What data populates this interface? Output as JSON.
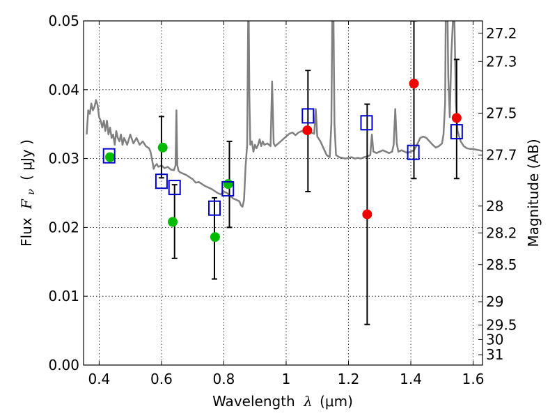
{
  "chart_data": {
    "type": "scatter",
    "xlabel_text": "Wavelength",
    "xlabel_symbol": "λ",
    "xlabel_unit": "(μm)",
    "ylabel_text": "Flux",
    "ylabel_symbol": "F",
    "ylabel_subscript": "ν",
    "ylabel_unit": "( μJy )",
    "y2label": "Magnitude (AB)",
    "xlim": [
      0.35,
      1.63
    ],
    "ylim": [
      0.0,
      0.05
    ],
    "x_ticks": [
      0.4,
      0.6,
      0.8,
      1.0,
      1.2,
      1.4,
      1.6
    ],
    "x_tick_labels": [
      "0.4",
      "0.6",
      "0.8",
      "1",
      "1.2",
      "1.4",
      "1.6"
    ],
    "y_ticks": [
      0.0,
      0.01,
      0.02,
      0.03,
      0.04,
      0.05
    ],
    "y_tick_labels": [
      "0.00",
      "0.01",
      "0.02",
      "0.03",
      "0.04",
      "0.05"
    ],
    "mag_ticks": [
      {
        "label": "27.2",
        "flux": 0.0482
      },
      {
        "label": "27.3",
        "flux": 0.0441
      },
      {
        "label": "27.5",
        "flux": 0.0366
      },
      {
        "label": "27.7",
        "flux": 0.0305
      },
      {
        "label": "28",
        "flux": 0.0231
      },
      {
        "label": "28.2",
        "flux": 0.0192
      },
      {
        "label": "28.5",
        "flux": 0.0146
      },
      {
        "label": "29",
        "flux": 0.0092
      },
      {
        "label": "29.5",
        "flux": 0.0058
      },
      {
        "label": "30",
        "flux": 0.0037
      },
      {
        "label": "31",
        "flux": 0.0015
      }
    ],
    "grid": true,
    "model_spectrum": {
      "color": "#808080",
      "points": [
        [
          0.36,
          0.0335
        ],
        [
          0.365,
          0.037
        ],
        [
          0.37,
          0.0365
        ],
        [
          0.375,
          0.038
        ],
        [
          0.38,
          0.037
        ],
        [
          0.385,
          0.0375
        ],
        [
          0.39,
          0.0385
        ],
        [
          0.395,
          0.0378
        ],
        [
          0.4,
          0.036
        ],
        [
          0.405,
          0.0355
        ],
        [
          0.41,
          0.0345
        ],
        [
          0.415,
          0.0355
        ],
        [
          0.42,
          0.034
        ],
        [
          0.425,
          0.0355
        ],
        [
          0.43,
          0.0335
        ],
        [
          0.435,
          0.0345
        ],
        [
          0.44,
          0.033
        ],
        [
          0.445,
          0.0335
        ],
        [
          0.45,
          0.032
        ],
        [
          0.455,
          0.034
        ],
        [
          0.46,
          0.033
        ],
        [
          0.465,
          0.0325
        ],
        [
          0.47,
          0.0335
        ],
        [
          0.475,
          0.032
        ],
        [
          0.48,
          0.033
        ],
        [
          0.49,
          0.032
        ],
        [
          0.5,
          0.0335
        ],
        [
          0.51,
          0.0322
        ],
        [
          0.52,
          0.033
        ],
        [
          0.53,
          0.032
        ],
        [
          0.54,
          0.0325
        ],
        [
          0.55,
          0.0318
        ],
        [
          0.56,
          0.0315
        ],
        [
          0.565,
          0.031
        ],
        [
          0.57,
          0.0298
        ],
        [
          0.575,
          0.0285
        ],
        [
          0.58,
          0.029
        ],
        [
          0.585,
          0.0292
        ],
        [
          0.59,
          0.0288
        ],
        [
          0.6,
          0.029
        ],
        [
          0.61,
          0.0286
        ],
        [
          0.62,
          0.0288
        ],
        [
          0.63,
          0.0284
        ],
        [
          0.64,
          0.0283
        ],
        [
          0.645,
          0.029
        ],
        [
          0.648,
          0.037
        ],
        [
          0.651,
          0.029
        ],
        [
          0.655,
          0.0282
        ],
        [
          0.66,
          0.028
        ],
        [
          0.67,
          0.0278
        ],
        [
          0.68,
          0.0276
        ],
        [
          0.69,
          0.0273
        ],
        [
          0.7,
          0.027
        ],
        [
          0.71,
          0.0265
        ],
        [
          0.72,
          0.0266
        ],
        [
          0.73,
          0.0263
        ],
        [
          0.74,
          0.026
        ],
        [
          0.75,
          0.0258
        ],
        [
          0.76,
          0.0256
        ],
        [
          0.77,
          0.0253
        ],
        [
          0.78,
          0.025
        ],
        [
          0.79,
          0.0248
        ],
        [
          0.8,
          0.0252
        ],
        [
          0.81,
          0.025
        ],
        [
          0.82,
          0.0246
        ],
        [
          0.83,
          0.0242
        ],
        [
          0.84,
          0.024
        ],
        [
          0.85,
          0.0238
        ],
        [
          0.855,
          0.0232
        ],
        [
          0.86,
          0.023
        ],
        [
          0.865,
          0.024
        ],
        [
          0.87,
          0.029
        ],
        [
          0.875,
          0.032
        ],
        [
          0.878,
          0.05
        ],
        [
          0.88,
          0.05
        ],
        [
          0.882,
          0.039
        ],
        [
          0.885,
          0.032
        ],
        [
          0.89,
          0.0325
        ],
        [
          0.895,
          0.031
        ],
        [
          0.9,
          0.032
        ],
        [
          0.905,
          0.0315
        ],
        [
          0.91,
          0.032
        ],
        [
          0.915,
          0.0328
        ],
        [
          0.92,
          0.0318
        ],
        [
          0.925,
          0.0325
        ],
        [
          0.93,
          0.032
        ],
        [
          0.94,
          0.0322
        ],
        [
          0.95,
          0.0318
        ],
        [
          0.955,
          0.0412
        ],
        [
          0.96,
          0.0322
        ],
        [
          0.965,
          0.0318
        ],
        [
          0.97,
          0.032
        ],
        [
          0.98,
          0.0324
        ],
        [
          0.99,
          0.0328
        ],
        [
          1.0,
          0.0332
        ],
        [
          1.01,
          0.0336
        ],
        [
          1.02,
          0.0338
        ],
        [
          1.03,
          0.0334
        ],
        [
          1.04,
          0.0338
        ],
        [
          1.05,
          0.034
        ],
        [
          1.06,
          0.0337
        ],
        [
          1.07,
          0.0335
        ],
        [
          1.08,
          0.0338
        ],
        [
          1.09,
          0.0336
        ],
        [
          1.095,
          0.0372
        ],
        [
          1.1,
          0.0332
        ],
        [
          1.11,
          0.0325
        ],
        [
          1.12,
          0.0315
        ],
        [
          1.13,
          0.0305
        ],
        [
          1.14,
          0.0302
        ],
        [
          1.145,
          0.035
        ],
        [
          1.148,
          0.05
        ],
        [
          1.152,
          0.05
        ],
        [
          1.155,
          0.035
        ],
        [
          1.16,
          0.0305
        ],
        [
          1.17,
          0.0302
        ],
        [
          1.18,
          0.0301
        ],
        [
          1.19,
          0.03
        ],
        [
          1.2,
          0.0301
        ],
        [
          1.21,
          0.0302
        ],
        [
          1.22,
          0.03
        ],
        [
          1.23,
          0.0301
        ],
        [
          1.24,
          0.03
        ],
        [
          1.25,
          0.0302
        ],
        [
          1.26,
          0.0303
        ],
        [
          1.27,
          0.0305
        ],
        [
          1.275,
          0.0335
        ],
        [
          1.28,
          0.031
        ],
        [
          1.29,
          0.0308
        ],
        [
          1.3,
          0.031
        ],
        [
          1.31,
          0.0312
        ],
        [
          1.32,
          0.031
        ],
        [
          1.33,
          0.0308
        ],
        [
          1.34,
          0.031
        ],
        [
          1.345,
          0.032
        ],
        [
          1.35,
          0.0372
        ],
        [
          1.355,
          0.0322
        ],
        [
          1.36,
          0.031
        ],
        [
          1.37,
          0.0312
        ],
        [
          1.38,
          0.031
        ],
        [
          1.39,
          0.0308
        ],
        [
          1.4,
          0.031
        ],
        [
          1.41,
          0.0312
        ],
        [
          1.42,
          0.032
        ],
        [
          1.43,
          0.033
        ],
        [
          1.44,
          0.0332
        ],
        [
          1.45,
          0.033
        ],
        [
          1.46,
          0.0325
        ],
        [
          1.47,
          0.032
        ],
        [
          1.48,
          0.0316
        ],
        [
          1.49,
          0.0318
        ],
        [
          1.5,
          0.0322
        ],
        [
          1.505,
          0.0335
        ],
        [
          1.51,
          0.038
        ],
        [
          1.512,
          0.05
        ],
        [
          1.518,
          0.05
        ],
        [
          1.52,
          0.042
        ],
        [
          1.525,
          0.036
        ],
        [
          1.53,
          0.045
        ],
        [
          1.535,
          0.05
        ],
        [
          1.54,
          0.05
        ],
        [
          1.545,
          0.038
        ],
        [
          1.55,
          0.034
        ],
        [
          1.56,
          0.0325
        ],
        [
          1.57,
          0.0318
        ],
        [
          1.58,
          0.0315
        ],
        [
          1.59,
          0.0314
        ],
        [
          1.6,
          0.0314
        ],
        [
          1.61,
          0.0313
        ],
        [
          1.62,
          0.0312
        ],
        [
          1.63,
          0.0311
        ]
      ]
    },
    "green_points": {
      "color": "#00bb00",
      "points": [
        [
          0.435,
          0.0302
        ],
        [
          0.604,
          0.0316
        ],
        [
          0.636,
          0.0208
        ],
        [
          0.772,
          0.0186
        ],
        [
          0.814,
          0.0263
        ]
      ]
    },
    "red_points": {
      "color": "#ee0000",
      "points": [
        [
          1.068,
          0.0341
        ],
        [
          1.26,
          0.0219
        ],
        [
          1.41,
          0.0409
        ],
        [
          1.547,
          0.0359
        ]
      ]
    },
    "model_squares": {
      "color": "#0000cc",
      "points": [
        [
          0.432,
          0.0304
        ],
        [
          0.6,
          0.0267
        ],
        [
          0.642,
          0.0258
        ],
        [
          0.77,
          0.0228
        ],
        [
          0.813,
          0.0256
        ],
        [
          1.07,
          0.0362
        ],
        [
          1.258,
          0.0352
        ],
        [
          1.408,
          0.0309
        ],
        [
          1.547,
          0.0339
        ]
      ]
    },
    "error_bars": [
      {
        "x": 0.6,
        "lo": 0.0272,
        "hi": 0.0361
      },
      {
        "x": 0.642,
        "lo": 0.0155,
        "hi": 0.0262
      },
      {
        "x": 0.77,
        "lo": 0.0125,
        "hi": 0.0243
      },
      {
        "x": 0.818,
        "lo": 0.02,
        "hi": 0.0325
      },
      {
        "x": 1.07,
        "lo": 0.0252,
        "hi": 0.0428
      },
      {
        "x": 1.26,
        "lo": 0.0059,
        "hi": 0.0379
      },
      {
        "x": 1.41,
        "lo": 0.0271,
        "hi": 0.05
      },
      {
        "x": 1.547,
        "lo": 0.0271,
        "hi": 0.0444
      }
    ]
  }
}
